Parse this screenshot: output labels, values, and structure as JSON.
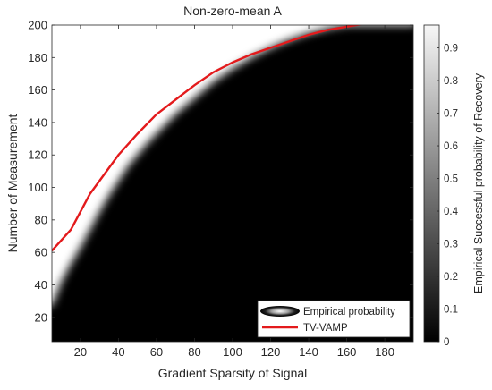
{
  "chart_data": {
    "type": "heatmap",
    "title": "Non-zero-mean A",
    "xlabel": "Gradient Sparsity of Signal",
    "ylabel": "Number of Measurement",
    "xlim": [
      5,
      195
    ],
    "ylim": [
      5,
      200
    ],
    "xticks": [
      20,
      40,
      60,
      80,
      100,
      120,
      140,
      160,
      180
    ],
    "yticks": [
      20,
      40,
      60,
      80,
      100,
      120,
      140,
      160,
      180,
      200
    ],
    "colorbar": {
      "label": "Empirical Successful probability of Recovery",
      "range": [
        0,
        0.97
      ],
      "ticks": [
        0,
        0.1,
        0.2,
        0.3,
        0.4,
        0.5,
        0.6,
        0.7,
        0.8,
        0.9
      ],
      "colormap": "gray"
    },
    "legend": {
      "placement": "bottom-right",
      "entries": [
        {
          "name": "Empirical probability",
          "marker": "gray-gradient-ellipse"
        },
        {
          "name": "TV-VAMP",
          "color": "#e31a1c"
        }
      ]
    },
    "phase_transition_boundary": {
      "x": [
        5,
        10,
        15,
        20,
        25,
        30,
        35,
        40,
        45,
        50,
        55,
        60,
        70,
        80,
        90,
        100,
        110,
        120,
        130,
        140,
        150,
        160,
        170,
        180,
        190,
        195
      ],
      "y": [
        27,
        42,
        53,
        63,
        74,
        85,
        95,
        104,
        113,
        120,
        127,
        133,
        145,
        155,
        165,
        173,
        180,
        186,
        191,
        195,
        198,
        200,
        200,
        200,
        200,
        200
      ]
    },
    "series": [
      {
        "name": "TV-VAMP",
        "color": "#e31a1c",
        "x": [
          5,
          15,
          25,
          35,
          40,
          50,
          60,
          70,
          80,
          90,
          100,
          110,
          120,
          130,
          140,
          150,
          160,
          170,
          180,
          190,
          195
        ],
        "y": [
          61,
          74,
          96,
          112,
          120,
          133,
          145,
          154,
          163,
          171,
          177,
          182,
          186,
          190,
          194,
          197,
          199,
          201,
          201,
          201,
          201
        ]
      }
    ]
  },
  "colors": {
    "background": "#ffffff",
    "axis": "#262626",
    "line": "#e31a1c"
  }
}
